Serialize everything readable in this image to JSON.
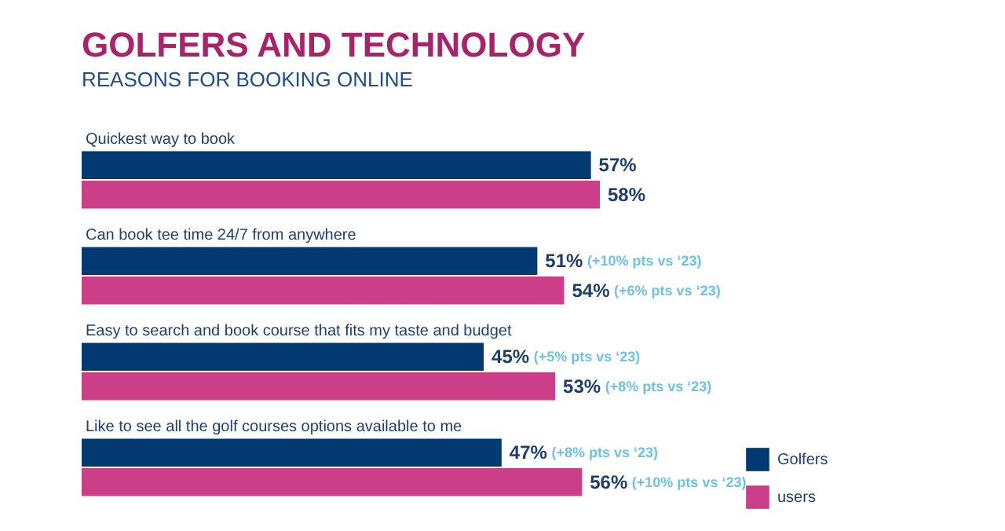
{
  "chart_data": {
    "type": "bar",
    "orientation": "horizontal",
    "title": "GOLFERS AND TECHNOLOGY",
    "subtitle": "REASONS FOR BOOKING ONLINE",
    "categories": [
      "Quickest way to book",
      "Can book tee time 24/7 from anywhere",
      "Easy to search and book course that fits my taste and budget",
      "Like to see all the golf courses options available to me"
    ],
    "series": [
      {
        "name": "Golfers",
        "color": "#003a70",
        "values": [
          57,
          51,
          45,
          47
        ],
        "value_labels": [
          "57%",
          "51% (+10% pts vs ‘23)",
          "45% (+5% pts vs ‘23)",
          "47% (+8% pts vs ‘23)"
        ]
      },
      {
        "name": "users",
        "color": "#cc3f88",
        "values": [
          58,
          54,
          53,
          56
        ],
        "value_labels": [
          "58%",
          "54% (+6% pts vs ‘23)",
          "53% (+8% pts vs ‘23)",
          "56% (+10% pts vs ‘23)"
        ]
      }
    ],
    "legend": "bottom right"
  }
}
